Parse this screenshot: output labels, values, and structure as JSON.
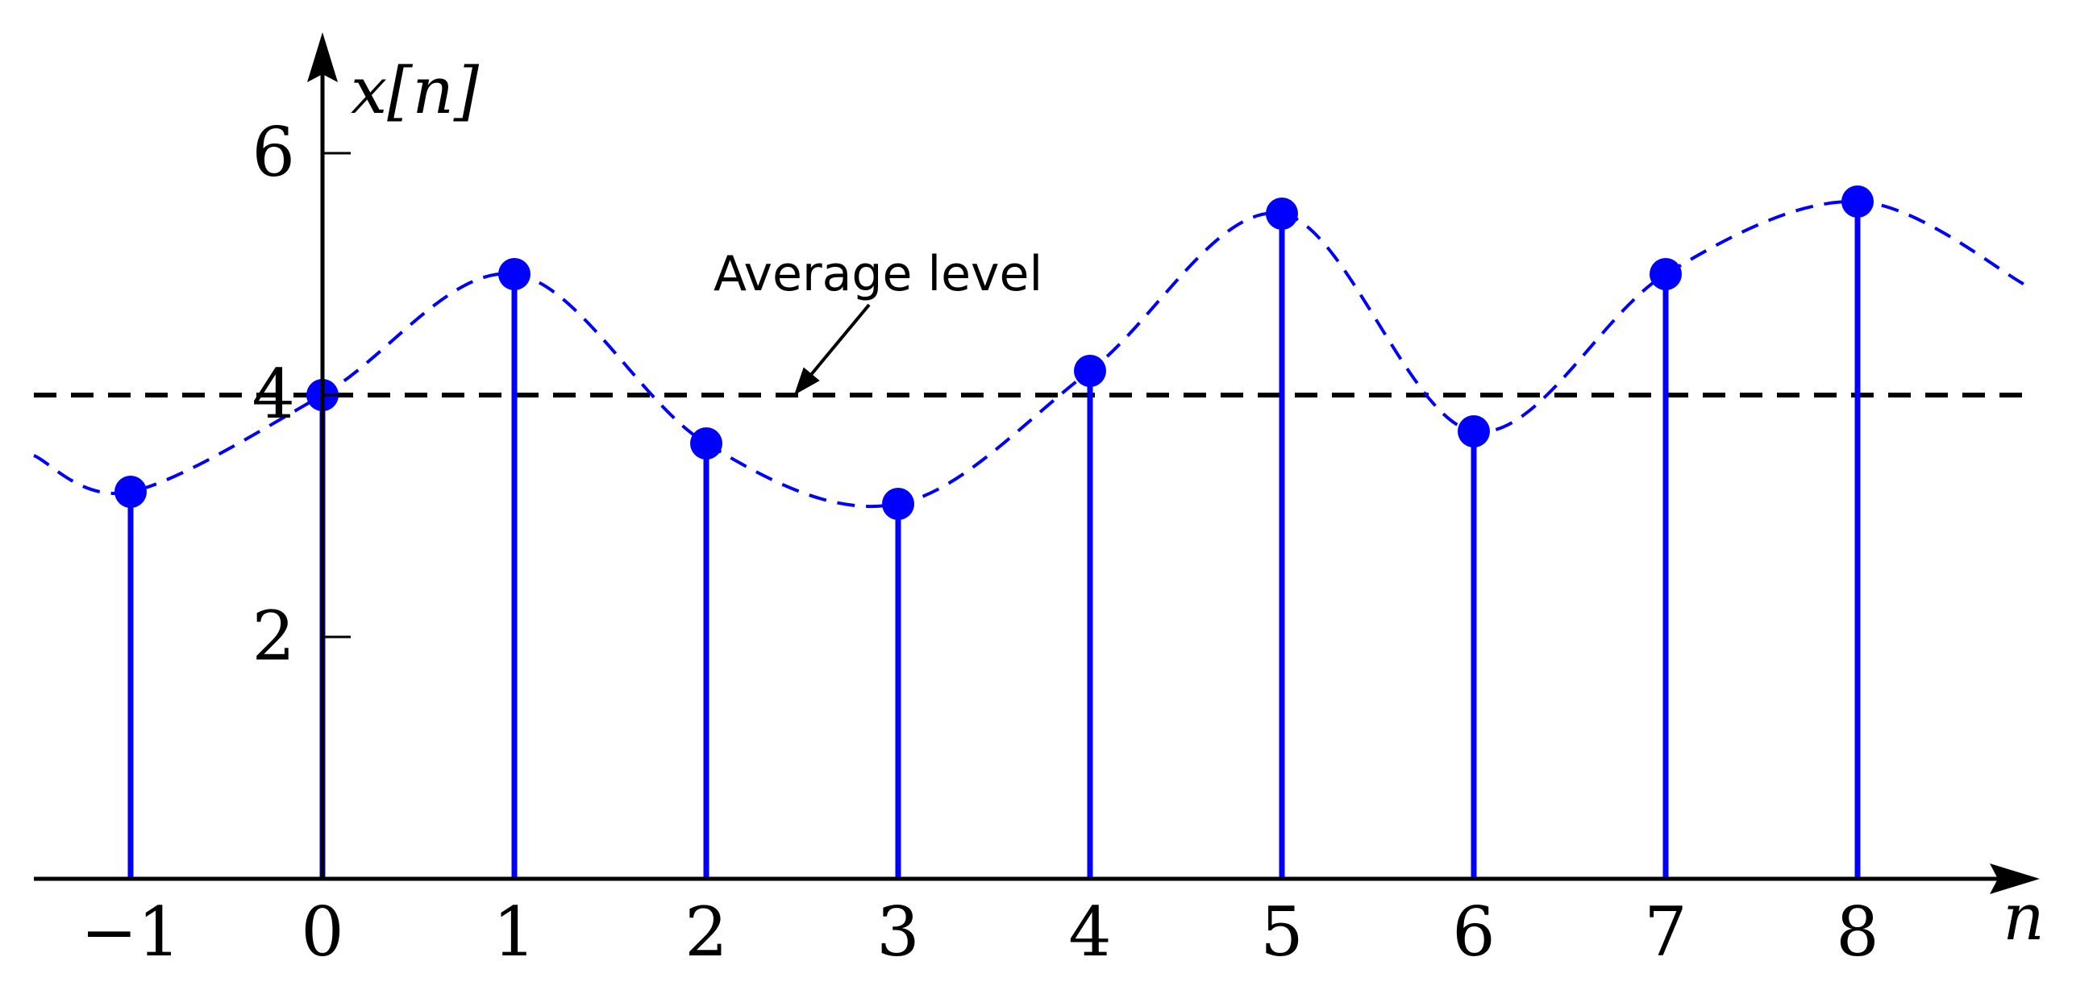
{
  "chart_data": {
    "type": "stem",
    "x": [
      -1,
      0,
      1,
      2,
      3,
      4,
      5,
      6,
      7,
      8
    ],
    "values": [
      3.2,
      4.0,
      5.0,
      3.6,
      3.1,
      4.2,
      5.5,
      3.7,
      5.0,
      5.6
    ],
    "xlabel": "n",
    "ylabel": "x[n]",
    "x_tick_labels": [
      "−1",
      "0",
      "1",
      "2",
      "3",
      "4",
      "5",
      "6",
      "7",
      "8"
    ],
    "y_ticks": [
      2,
      4,
      6
    ],
    "y_tick_labels": [
      "2",
      "4",
      "6"
    ],
    "xlim": [
      -1.5,
      8.95
    ],
    "ylim": [
      0,
      7
    ],
    "average_level": 4,
    "annotation": {
      "text": "Average level",
      "points_to": [
        2.5,
        4
      ]
    },
    "grid": false,
    "colors": {
      "stem": "#0000ff",
      "envelope": "#0000ff",
      "average_line": "#000000",
      "axes": "#000000"
    }
  }
}
